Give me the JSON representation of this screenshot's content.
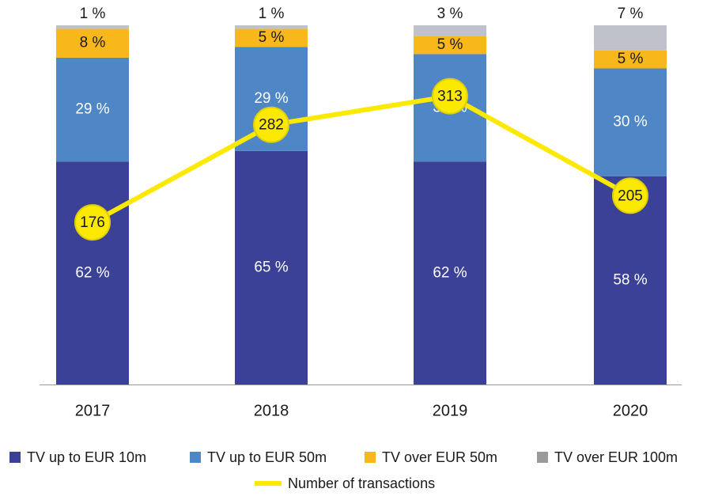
{
  "chart_data": {
    "type": "bar",
    "stacked": true,
    "categories": [
      "2017",
      "2018",
      "2019",
      "2020"
    ],
    "ylim": [
      0,
      100
    ],
    "y2lim": [
      0,
      390
    ],
    "series": [
      {
        "name": "TV up to EUR 10m",
        "color": "#3a4196",
        "values": [
          62,
          65,
          62,
          58
        ],
        "value_labels": [
          "62 %",
          "65 %",
          "62 %",
          "58 %"
        ]
      },
      {
        "name": "TV up to EUR 50m",
        "color": "#4f86c6",
        "values": [
          29,
          29,
          30,
          30
        ],
        "value_labels": [
          "29 %",
          "29 %",
          "30 %",
          "30 %"
        ]
      },
      {
        "name": "TV over EUR 50m",
        "color": "#f8b81b",
        "values": [
          8,
          5,
          5,
          5
        ],
        "value_labels": [
          "8 %",
          "5 %",
          "5 %",
          "5 %"
        ]
      },
      {
        "name": "TV over EUR 100m",
        "color": "#bfc2ca",
        "values": [
          1,
          1,
          3,
          7
        ],
        "value_labels": [
          "1 %",
          "1 %",
          "3 %",
          "7 %"
        ]
      },
      {
        "name": "Number of transactions",
        "type": "line",
        "axis": "y2",
        "color": "#fbe900",
        "values": [
          176,
          282,
          313,
          205
        ]
      }
    ]
  }
}
